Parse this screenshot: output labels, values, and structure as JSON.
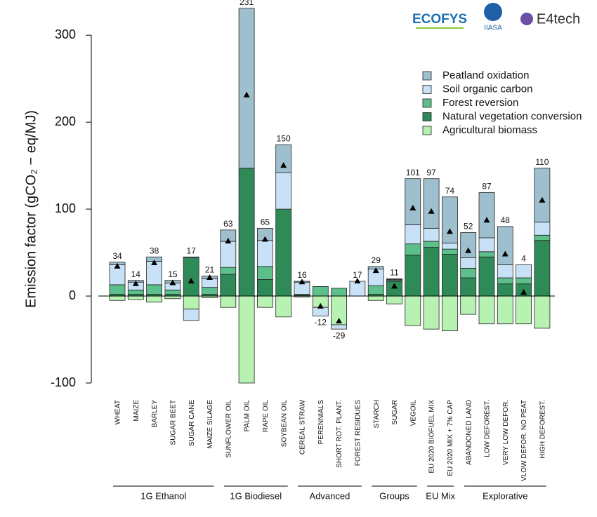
{
  "chart_data": {
    "type": "stacked_bar",
    "ylabel": "Emission factor (gCO₂ − eq/MJ)",
    "logos": [
      "ECOFYS",
      "IIASA",
      "E4tech"
    ],
    "categories": [
      "WHEAT",
      "MAIZE",
      "BARLEY",
      "SUGAR BEET",
      "SUGAR CANE",
      "MAIZE SILAGE",
      "SUNFLOWER OIL",
      "PALM OIL",
      "RAPE OIL",
      "SOYBEAN OIL",
      "CEREAL STRAW",
      "PERENNIALS",
      "SHORT ROT. PLANT.",
      "FOREST RESIDUES",
      "STARCH",
      "SUGAR",
      "VEGOIL",
      "EU 2020 BIOFUEL MIX",
      "EU 2020 MIX + 7% CAP",
      "ABANDONED LAND",
      "LOW DEFOREST.",
      "VERY LOW DEFOR.",
      "VLOW DEFOR. NO PEAT",
      "HIGH DEFOREST."
    ],
    "groups": [
      {
        "name": "1G Ethanol",
        "start": 0,
        "end": 5
      },
      {
        "name": "1G Biodiesel",
        "start": 6,
        "end": 9
      },
      {
        "name": "Advanced",
        "start": 10,
        "end": 13
      },
      {
        "name": "Groups",
        "start": 14,
        "end": 16
      },
      {
        "name": "EU Mix",
        "start": 17,
        "end": 18
      },
      {
        "name": "Explorative",
        "start": 19,
        "end": 23
      }
    ],
    "series": [
      {
        "name": "Agricultural biomass",
        "color": "#b8f2b2",
        "values": [
          -5,
          -4,
          -7,
          -3,
          -15,
          -2,
          -13,
          -100,
          -13,
          -24,
          -1,
          -13,
          -33,
          0,
          -5,
          -9,
          -34,
          -38,
          -40,
          -21,
          -32,
          -32,
          -32,
          -37
        ]
      },
      {
        "name": "Natural vegetation conversion",
        "color": "#2e8b57",
        "values": [
          2,
          2,
          2,
          2,
          44,
          2,
          25,
          147,
          19,
          100,
          1,
          0,
          0,
          0,
          2,
          17,
          47,
          56,
          48,
          21,
          45,
          14,
          14,
          64
        ]
      },
      {
        "name": "Forest reversion",
        "color": "#5cbf8c",
        "values": [
          11,
          5,
          11,
          5,
          0,
          8,
          8,
          0,
          15,
          0,
          1,
          11,
          9,
          0,
          10,
          1,
          13,
          7,
          6,
          11,
          6,
          7,
          7,
          6
        ]
      },
      {
        "name": "Soil organic carbon",
        "color": "#c9e1f7",
        "values": [
          23,
          9,
          27,
          8,
          -13,
          10,
          30,
          0,
          30,
          42,
          14,
          -10,
          -5,
          17,
          19,
          1,
          22,
          15,
          7,
          12,
          16,
          15,
          15,
          15
        ]
      },
      {
        "name": "Peatland oxidation",
        "color": "#9ebfcd",
        "values": [
          3,
          2,
          5,
          3,
          1,
          3,
          13,
          184,
          14,
          32,
          1,
          0,
          0,
          0,
          3,
          1,
          53,
          57,
          53,
          29,
          52,
          44,
          0,
          62
        ]
      }
    ],
    "net_values": [
      34,
      14,
      38,
      15,
      17,
      21,
      63,
      231,
      65,
      150,
      16,
      -12,
      -29,
      17,
      29,
      11,
      101,
      97,
      74,
      52,
      87,
      48,
      4,
      110
    ],
    "ylim": [
      -100,
      330
    ],
    "yticks": [
      -100,
      0,
      100,
      200,
      300
    ],
    "legend": "upper right"
  }
}
